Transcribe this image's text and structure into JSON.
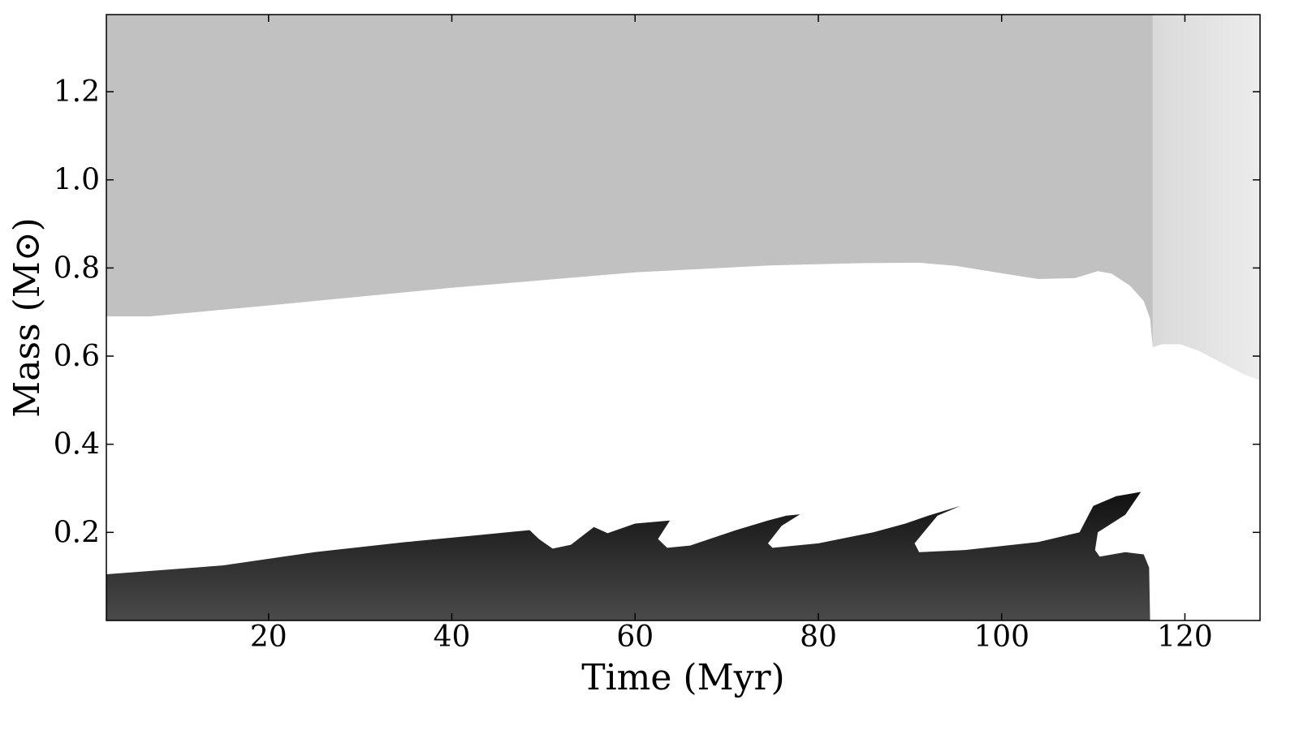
{
  "chart_data": {
    "type": "heatmap",
    "title": "",
    "xlabel": "Time (Myr)",
    "ylabel": "Mass (M⊙)",
    "xlim": [
      2.3,
      128.2
    ],
    "ylim": [
      0.0,
      1.375
    ],
    "xticks": [
      20,
      40,
      60,
      80,
      100,
      120
    ],
    "yticks": [
      0.2,
      0.4,
      0.6,
      0.8,
      1.0,
      1.2
    ],
    "xtick_labels": [
      "20",
      "40",
      "60",
      "80",
      "100",
      "120"
    ],
    "ytick_labels": [
      "0.2",
      "0.4",
      "0.6",
      "0.8",
      "1.0",
      "1.2"
    ],
    "grid": false,
    "colors": {
      "envelope": "#c1c1c1",
      "envelope_late": "#e2e2e2",
      "radiative": "#ffffff",
      "core_top": "#111111",
      "core_bottom": "#4a4a4a",
      "frame": "#000000"
    },
    "regions": [
      {
        "name": "outer envelope",
        "lower_boundary": [
          [
            2.3,
            0.69
          ],
          [
            7,
            0.69
          ],
          [
            20,
            0.715
          ],
          [
            40,
            0.755
          ],
          [
            60,
            0.79
          ],
          [
            75,
            0.806
          ],
          [
            85,
            0.811
          ],
          [
            91,
            0.812
          ],
          [
            95,
            0.805
          ],
          [
            100,
            0.788
          ],
          [
            104,
            0.775
          ],
          [
            108,
            0.777
          ],
          [
            110.5,
            0.793
          ],
          [
            112,
            0.787
          ],
          [
            114,
            0.76
          ],
          [
            115.5,
            0.725
          ],
          [
            116.2,
            0.685
          ],
          [
            116.5,
            0.62
          ]
        ]
      },
      {
        "name": "late envelope",
        "lower_boundary": [
          [
            116.5,
            0.62
          ],
          [
            117.5,
            0.627
          ],
          [
            119.5,
            0.627
          ],
          [
            121.5,
            0.612
          ],
          [
            124,
            0.585
          ],
          [
            126.5,
            0.558
          ],
          [
            128.2,
            0.545
          ]
        ]
      },
      {
        "name": "inner core",
        "upper_boundary": [
          [
            2.3,
            0.105
          ],
          [
            15,
            0.125
          ],
          [
            25,
            0.155
          ],
          [
            35,
            0.178
          ],
          [
            43,
            0.194
          ],
          [
            48.5,
            0.205
          ],
          [
            49.5,
            0.185
          ],
          [
            51,
            0.163
          ],
          [
            53,
            0.172
          ],
          [
            55.5,
            0.212
          ],
          [
            57,
            0.198
          ],
          [
            60,
            0.22
          ],
          [
            63.8,
            0.227
          ],
          [
            62.5,
            0.185
          ],
          [
            63.5,
            0.165
          ],
          [
            66,
            0.17
          ],
          [
            71,
            0.205
          ],
          [
            74.5,
            0.227
          ],
          [
            76.5,
            0.238
          ],
          [
            78,
            0.241
          ],
          [
            76,
            0.215
          ],
          [
            74.5,
            0.175
          ],
          [
            75,
            0.165
          ],
          [
            80,
            0.175
          ],
          [
            86,
            0.2
          ],
          [
            89.5,
            0.22
          ],
          [
            92,
            0.238
          ],
          [
            95.5,
            0.26
          ],
          [
            93,
            0.238
          ],
          [
            90.5,
            0.175
          ],
          [
            91,
            0.155
          ],
          [
            96,
            0.16
          ],
          [
            104,
            0.178
          ],
          [
            108.5,
            0.2
          ],
          [
            110,
            0.26
          ],
          [
            112.5,
            0.282
          ],
          [
            115.2,
            0.292
          ],
          [
            113.5,
            0.24
          ],
          [
            110.5,
            0.2
          ],
          [
            110.2,
            0.16
          ],
          [
            110.7,
            0.145
          ],
          [
            113.5,
            0.155
          ],
          [
            115.5,
            0.15
          ],
          [
            116.1,
            0.12
          ],
          [
            116.2,
            0.0
          ]
        ]
      }
    ]
  }
}
